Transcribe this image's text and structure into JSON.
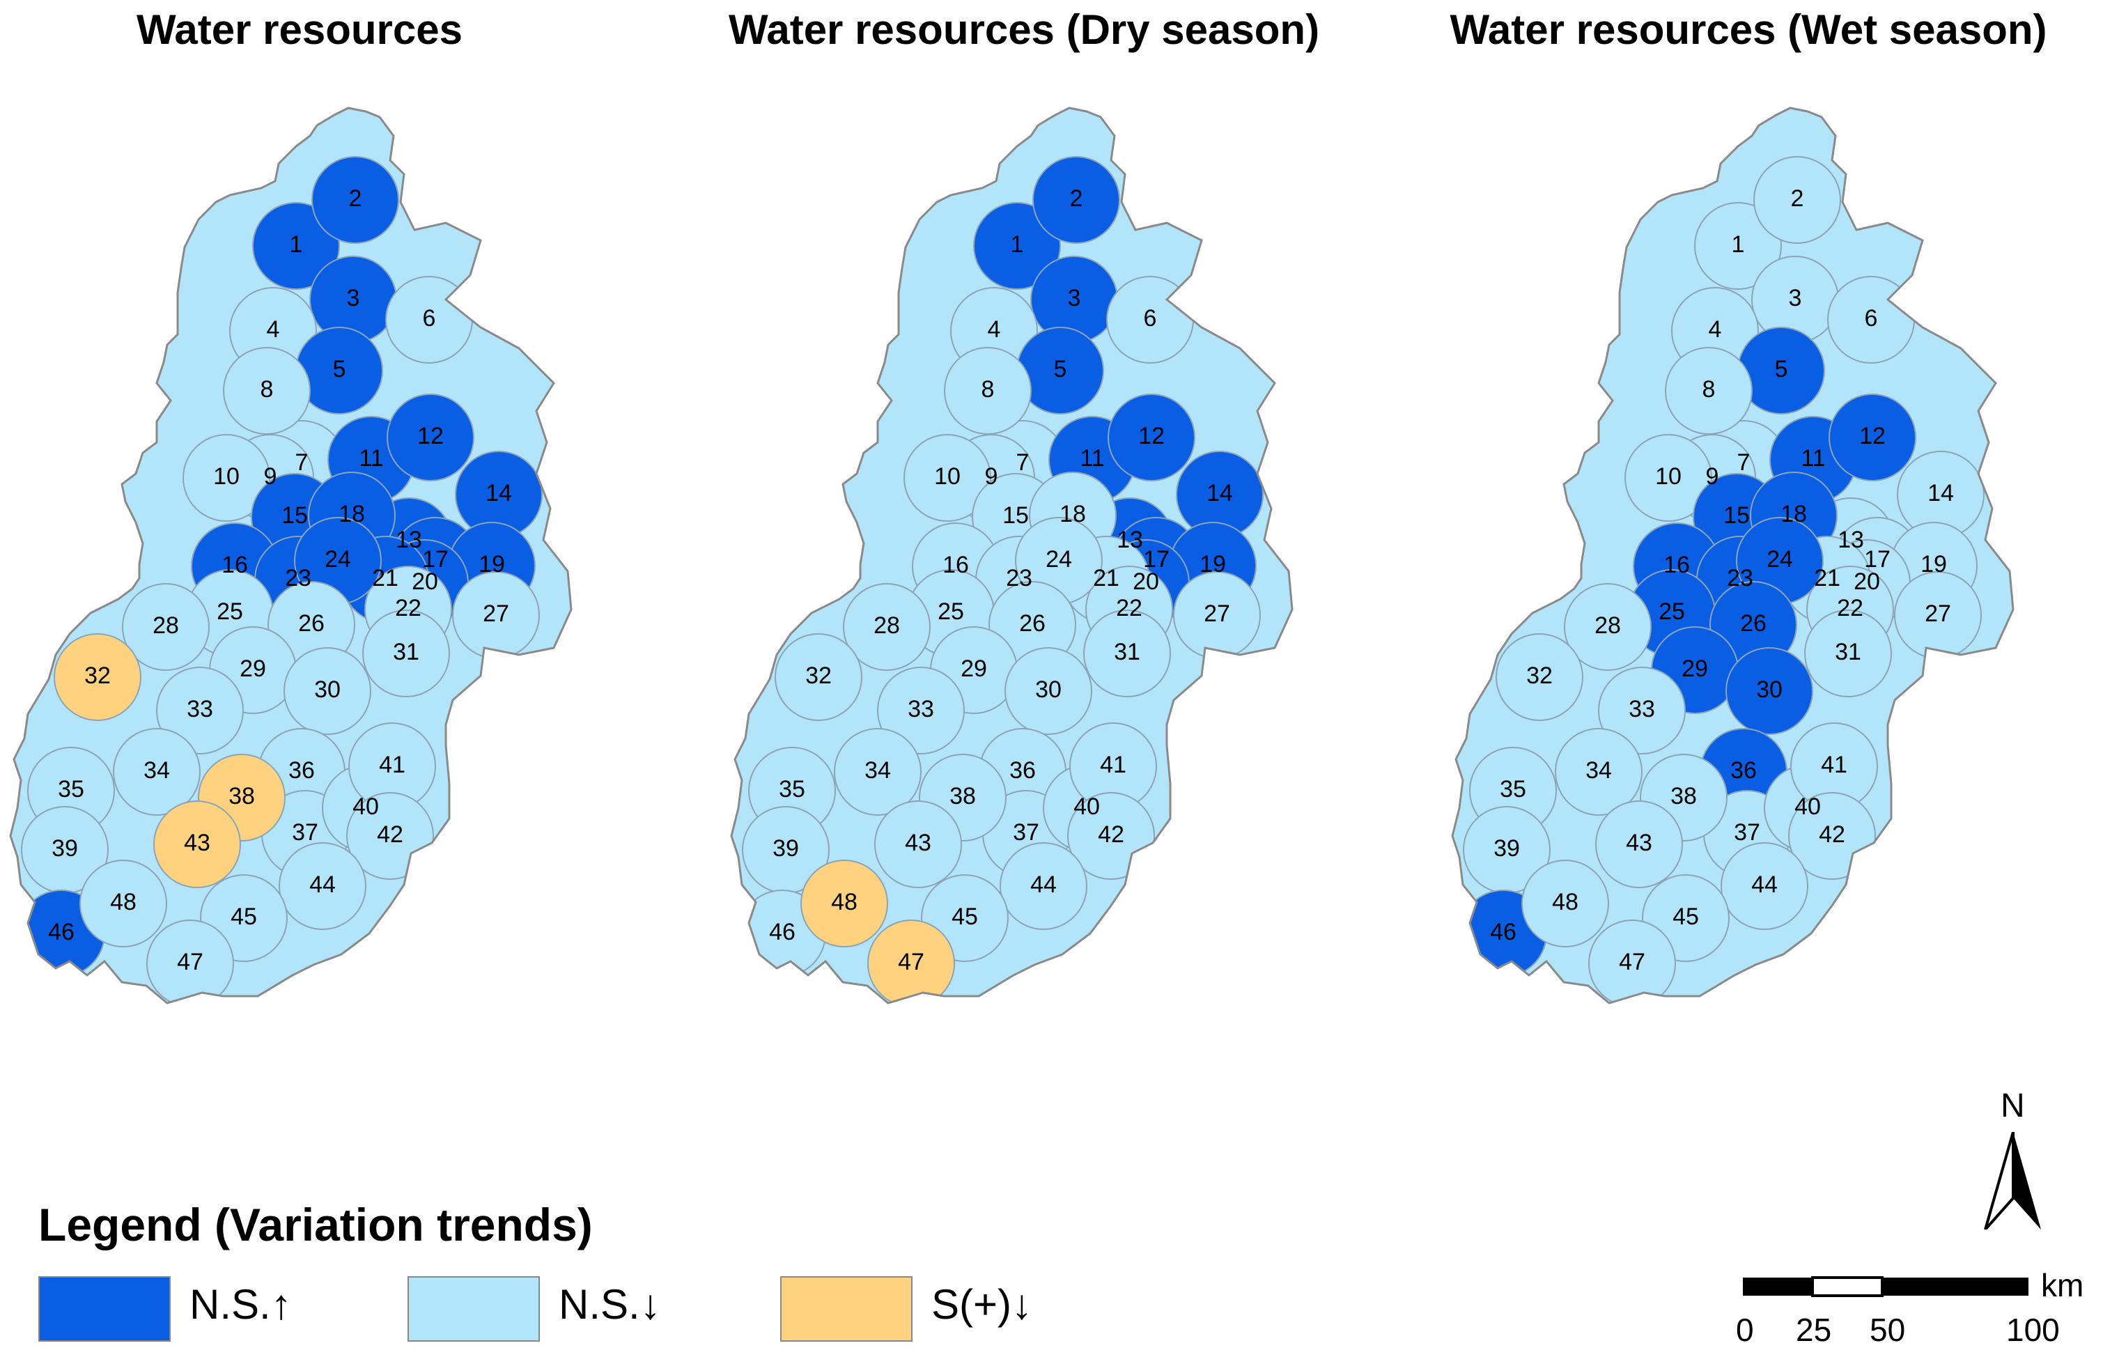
{
  "titles": [
    "Water resources",
    "Water resources (Dry season)",
    "Water resources (Wet season)"
  ],
  "legend": {
    "title": "Legend (Variation trends)",
    "items": [
      {
        "label": "N.S.↑",
        "color": "#0a5ee3"
      },
      {
        "label": "N.S.↓",
        "color": "#b3e5fa"
      },
      {
        "label": "S(+)↓",
        "color": "#ffd27f"
      }
    ]
  },
  "north_label": "N",
  "scale": {
    "unit": "km",
    "ticks": [
      "0",
      "25",
      "50",
      "100"
    ]
  },
  "maps": [
    {
      "up": [
        1,
        2,
        3,
        5,
        11,
        12,
        13,
        14,
        15,
        16,
        17,
        18,
        19,
        20,
        21,
        23,
        24
      ],
      "sig": [
        32,
        38,
        43
      ]
    },
    {
      "up": [
        1,
        2,
        3,
        5,
        11,
        12,
        13,
        14,
        17,
        19,
        20
      ],
      "sig": [
        47,
        48
      ]
    },
    {
      "up": [
        5,
        11,
        12,
        15,
        16,
        18,
        23,
        24,
        25,
        26,
        29,
        30,
        36,
        46
      ],
      "sig": []
    }
  ],
  "map1_extra_up": [
    46
  ]
}
